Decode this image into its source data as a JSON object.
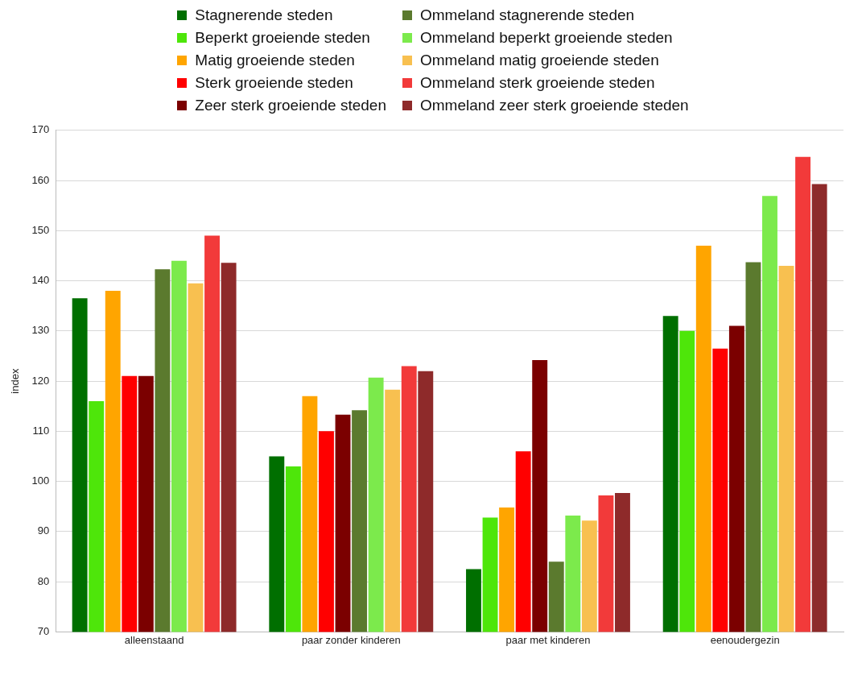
{
  "chart_data": {
    "type": "bar",
    "ylabel": "index",
    "categories": [
      "alleenstaand",
      "paar zonder kinderen",
      "paar met kinderen",
      "eenoudergezin"
    ],
    "series": [
      {
        "name": "Stagnerende steden",
        "color": "#006f00",
        "values": [
          136.5,
          105,
          82.5,
          133
        ]
      },
      {
        "name": "Beperkt groeiende steden",
        "color": "#4ee60a",
        "values": [
          116,
          103,
          92.8,
          130
        ]
      },
      {
        "name": "Matig groeiende steden",
        "color": "#ffa500",
        "values": [
          138,
          117,
          94.8,
          147
        ]
      },
      {
        "name": "Sterk groeiende steden",
        "color": "#ff0000",
        "values": [
          121,
          110,
          106,
          126.5
        ]
      },
      {
        "name": "Zeer sterk groeiende steden",
        "color": "#7b0000",
        "values": [
          121,
          113.3,
          124.2,
          131
        ]
      },
      {
        "name": "Ommeland stagnerende steden",
        "color": "#5b7a2e",
        "values": [
          142.3,
          114.2,
          84,
          143.7
        ]
      },
      {
        "name": "Ommeland beperkt groeiende steden",
        "color": "#7cea4c",
        "values": [
          144,
          120.7,
          93.2,
          156.9
        ]
      },
      {
        "name": "Ommeland matig groeiende steden",
        "color": "#f8c050",
        "values": [
          139.5,
          118.3,
          92.2,
          143
        ]
      },
      {
        "name": "Ommeland sterk groeiende steden",
        "color": "#f23a3a",
        "values": [
          149,
          123,
          97.2,
          164.7
        ]
      },
      {
        "name": "Ommeland zeer sterk groeiende steden",
        "color": "#8e2a2a",
        "values": [
          143.6,
          122,
          97.7,
          159.3
        ]
      }
    ],
    "ylim": [
      70,
      170
    ],
    "yticks": [
      70,
      80,
      90,
      100,
      110,
      120,
      130,
      140,
      150,
      160,
      170
    ],
    "grid": "y",
    "legend": "top"
  }
}
